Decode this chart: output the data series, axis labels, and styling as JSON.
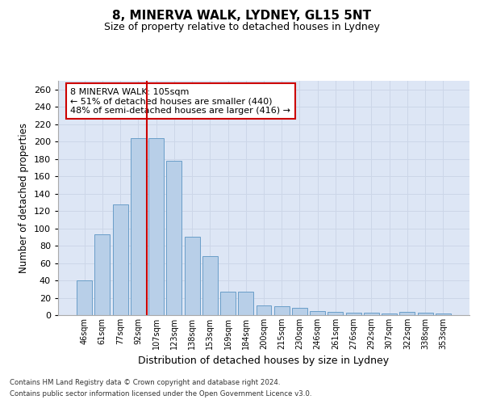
{
  "title1": "8, MINERVA WALK, LYDNEY, GL15 5NT",
  "title2": "Size of property relative to detached houses in Lydney",
  "xlabel": "Distribution of detached houses by size in Lydney",
  "ylabel": "Number of detached properties",
  "categories": [
    "46sqm",
    "61sqm",
    "77sqm",
    "92sqm",
    "107sqm",
    "123sqm",
    "138sqm",
    "153sqm",
    "169sqm",
    "184sqm",
    "200sqm",
    "215sqm",
    "230sqm",
    "246sqm",
    "261sqm",
    "276sqm",
    "292sqm",
    "307sqm",
    "322sqm",
    "338sqm",
    "353sqm"
  ],
  "values": [
    40,
    93,
    128,
    204,
    204,
    178,
    90,
    68,
    27,
    27,
    11,
    10,
    8,
    5,
    4,
    3,
    3,
    2,
    4,
    3,
    2
  ],
  "bar_color": "#b8cfe8",
  "bar_edge_color": "#6a9ec8",
  "vline_color": "#cc0000",
  "vline_pos": 4,
  "annotation_text": "8 MINERVA WALK: 105sqm\n← 51% of detached houses are smaller (440)\n48% of semi-detached houses are larger (416) →",
  "annotation_box_facecolor": "#ffffff",
  "annotation_box_edgecolor": "#cc0000",
  "grid_color": "#ccd6e8",
  "background_color": "#dde6f5",
  "footnote1": "Contains HM Land Registry data © Crown copyright and database right 2024.",
  "footnote2": "Contains public sector information licensed under the Open Government Licence v3.0.",
  "ylim": [
    0,
    270
  ],
  "yticks": [
    0,
    20,
    40,
    60,
    80,
    100,
    120,
    140,
    160,
    180,
    200,
    220,
    240,
    260
  ]
}
